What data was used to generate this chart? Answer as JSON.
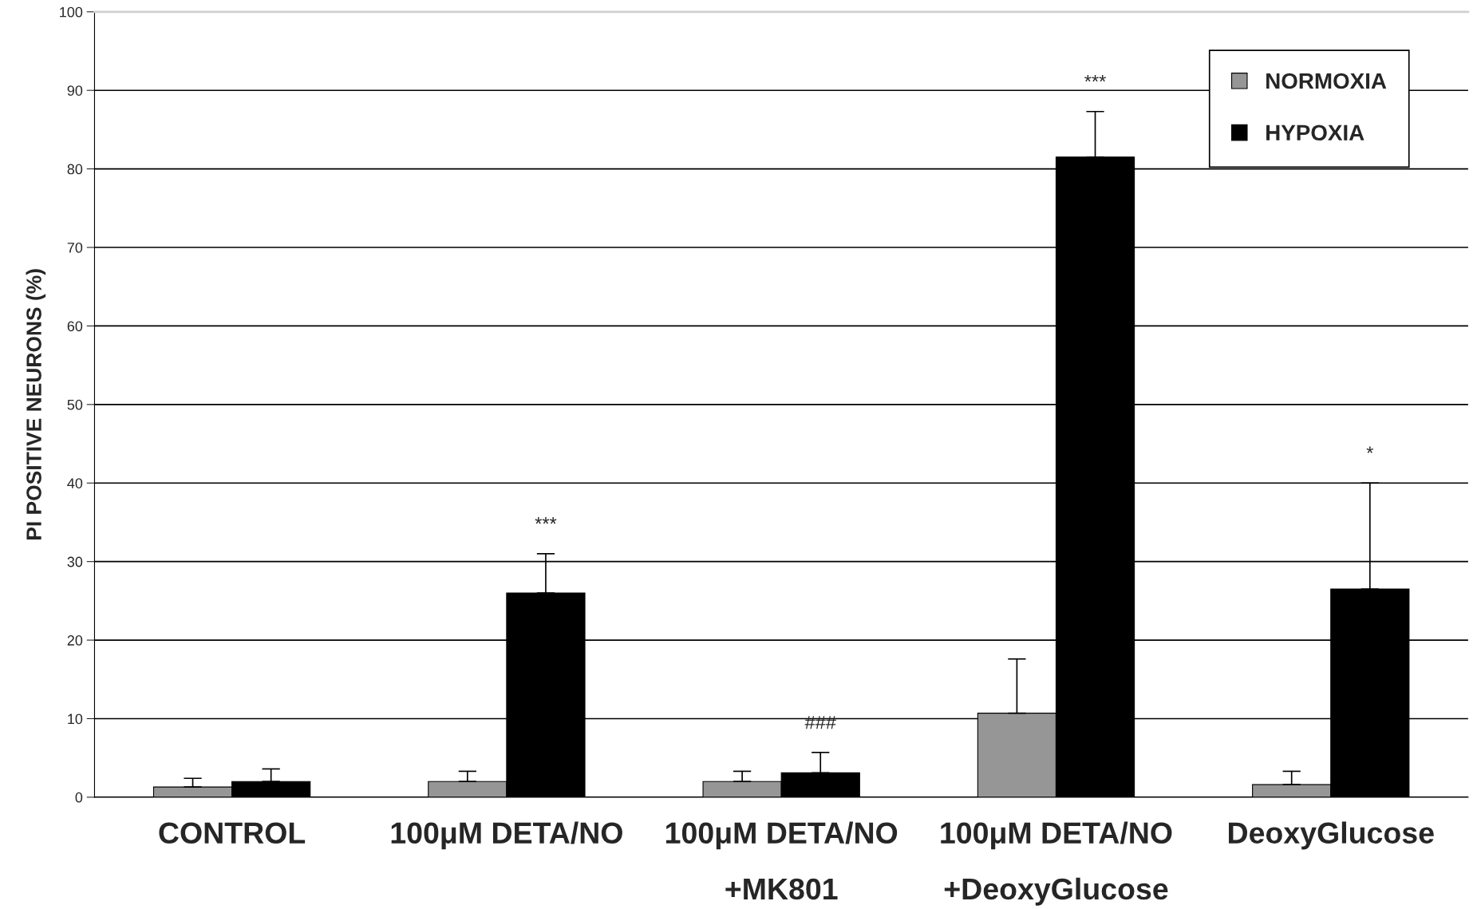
{
  "chart_data": {
    "type": "bar",
    "categories": [
      "CONTROL",
      "100μM DETA/NO",
      "100μM DETA/NO\n+MK801",
      "100μM DETA/NO\n+DeoxyGlucose",
      "DeoxyGlucose"
    ],
    "ylabel": "PI POSITIVE NEURONS (%)",
    "series": [
      {
        "name": "NORMOXIA",
        "color": "#969696",
        "values": [
          1.3,
          2.0,
          2.0,
          10.7,
          1.6
        ],
        "errors": [
          [
            1.3,
            2.4
          ],
          [
            2.0,
            3.3
          ],
          [
            2.0,
            3.3
          ],
          [
            10.7,
            17.6
          ],
          [
            1.6,
            3.3
          ]
        ]
      },
      {
        "name": "HYPOXIA",
        "color": "#000000",
        "values": [
          2.0,
          26.0,
          3.1,
          81.5,
          26.5
        ],
        "errors": [
          [
            2.0,
            3.6
          ],
          [
            26.0,
            31.0
          ],
          [
            3.1,
            5.7
          ],
          [
            81.5,
            87.3
          ],
          [
            26.5,
            40.0
          ]
        ]
      }
    ],
    "annotations": [
      "***",
      "###",
      "***",
      "*"
    ],
    "ylim": [
      0,
      100
    ],
    "yticks": [
      0,
      10,
      20,
      30,
      40,
      50,
      60,
      70,
      80,
      90,
      100
    ],
    "grid": "y",
    "legend": "top right"
  }
}
